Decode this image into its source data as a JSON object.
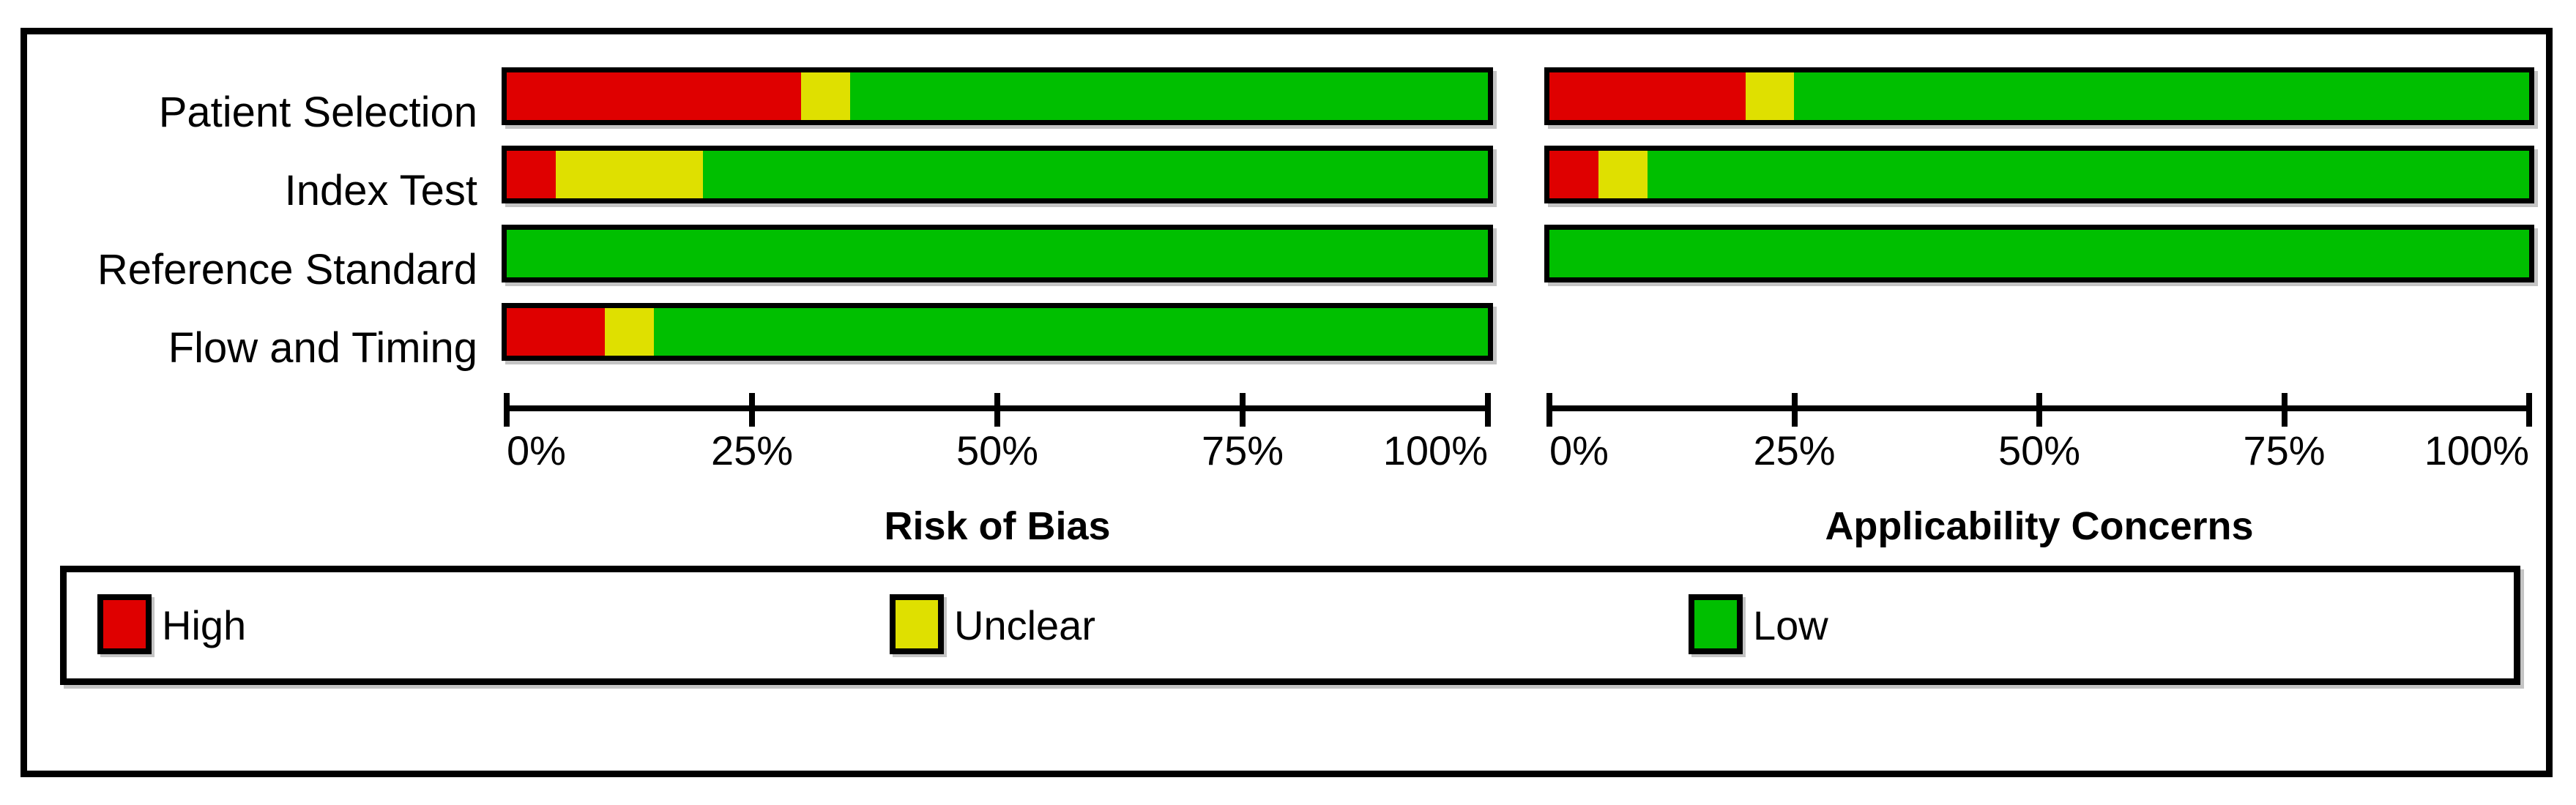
{
  "chart_data": [
    {
      "type": "bar",
      "orientation": "horizontal-stacked",
      "title": "Risk of Bias",
      "categories": [
        "Patient Selection",
        "Index Test",
        "Reference Standard",
        "Flow and Timing"
      ],
      "x_ticks": [
        "0%",
        "25%",
        "50%",
        "75%",
        "100%"
      ],
      "xlim": [
        0,
        100
      ],
      "grid": false,
      "series": [
        {
          "name": "High",
          "values": [
            30,
            5,
            0,
            10
          ]
        },
        {
          "name": "Unclear",
          "values": [
            5,
            15,
            0,
            5
          ]
        },
        {
          "name": "Low",
          "values": [
            65,
            80,
            100,
            85
          ]
        }
      ]
    },
    {
      "type": "bar",
      "orientation": "horizontal-stacked",
      "title": "Applicability Concerns",
      "categories": [
        "Patient Selection",
        "Index Test",
        "Reference Standard",
        "Flow and Timing"
      ],
      "x_ticks": [
        "0%",
        "25%",
        "50%",
        "75%",
        "100%"
      ],
      "xlim": [
        0,
        100
      ],
      "grid": false,
      "series": [
        {
          "name": "High",
          "values": [
            20,
            5,
            0,
            null
          ]
        },
        {
          "name": "Unclear",
          "values": [
            5,
            5,
            0,
            null
          ]
        },
        {
          "name": "Low",
          "values": [
            75,
            90,
            100,
            null
          ]
        }
      ]
    }
  ],
  "row_labels": [
    "Patient Selection",
    "Index Test",
    "Reference Standard",
    "Flow and Timing"
  ],
  "legend": {
    "items": [
      {
        "label": "High",
        "color": "#DF0000"
      },
      {
        "label": "Unclear",
        "color": "#DFE000"
      },
      {
        "label": "Low",
        "color": "#00BF00"
      }
    ]
  },
  "colors": {
    "high": "#DF0000",
    "unclear": "#DFE000",
    "low": "#00BF00",
    "axis": "#000000"
  }
}
